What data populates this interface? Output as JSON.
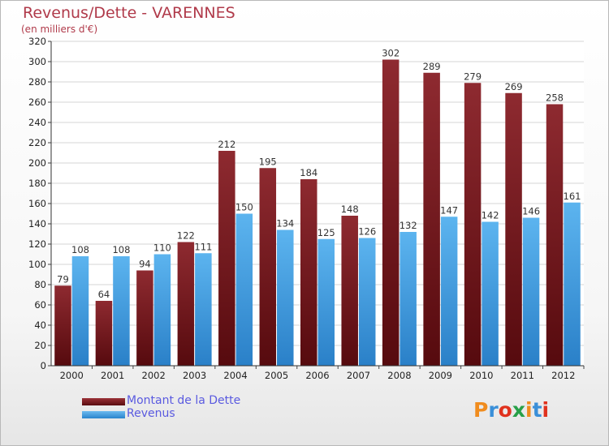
{
  "title": "Revenus/Dette - VARENNES",
  "subtitle": "(en milliers d'€)",
  "chart_data": {
    "type": "bar",
    "categories": [
      "2000",
      "2001",
      "2002",
      "2003",
      "2004",
      "2005",
      "2006",
      "2007",
      "2008",
      "2009",
      "2010",
      "2011",
      "2012"
    ],
    "series": [
      {
        "name": "Montant de la Dette",
        "values": [
          79,
          64,
          94,
          122,
          212,
          195,
          184,
          148,
          302,
          289,
          279,
          269,
          258
        ],
        "color": "#7a1a1e"
      },
      {
        "name": "Revenus",
        "values": [
          108,
          108,
          110,
          111,
          150,
          134,
          125,
          126,
          132,
          147,
          142,
          146,
          161
        ],
        "color": "#3d9be0"
      }
    ],
    "ylim": [
      0,
      320
    ],
    "ytick_step": 20,
    "grid": true,
    "legend_position": "bottom-left",
    "data_labels": true
  },
  "legend": {
    "debt_label": "Montant de la Dette",
    "revenue_label": "Revenus"
  },
  "logo": {
    "text": "Proxiti",
    "colors": [
      "#f08c1e",
      "#3a8fd8",
      "#e0321e",
      "#28a048",
      "#f08c1e",
      "#3a8fd8",
      "#e0321e"
    ]
  }
}
